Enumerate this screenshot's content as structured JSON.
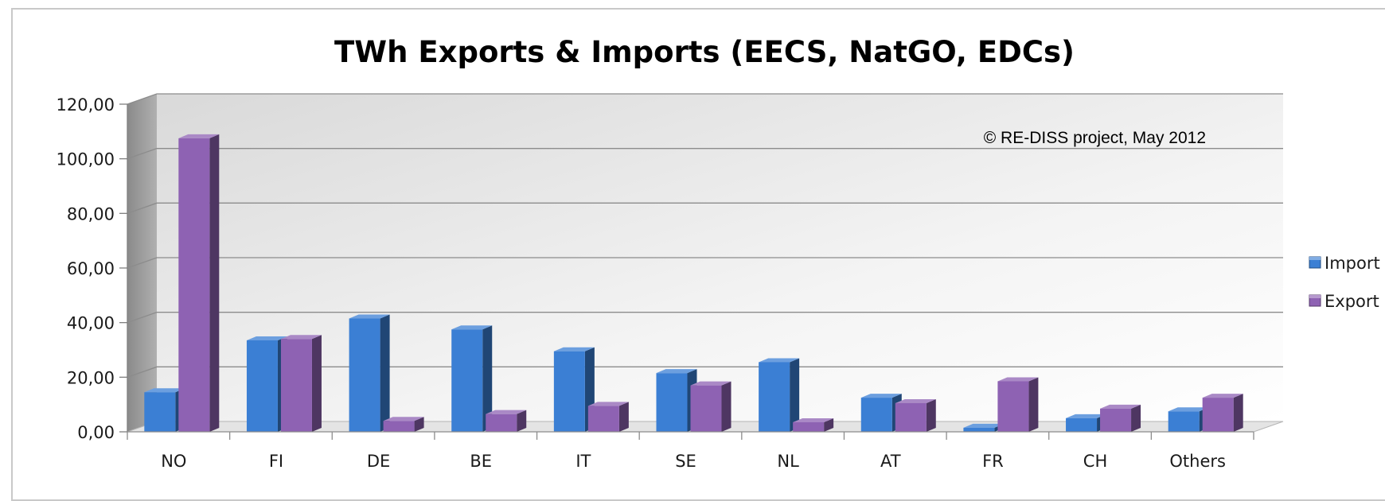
{
  "chart_data": {
    "type": "bar",
    "title": "TWh Exports & Imports (EECS, NatGO, EDCs)",
    "annotation": "© RE-DISS project, May 2012",
    "categories": [
      "NO",
      "FI",
      "DE",
      "BE",
      "IT",
      "SE",
      "NL",
      "AT",
      "FR",
      "CH",
      "Others"
    ],
    "series": [
      {
        "name": "Import",
        "color": "#3b7fd4",
        "values": [
          14.5,
          33.5,
          41.5,
          37.5,
          29.5,
          21.5,
          25.5,
          12.5,
          1.5,
          5.0,
          7.5
        ]
      },
      {
        "name": "Export",
        "color": "#8e62b3",
        "values": [
          107.5,
          34.0,
          4.0,
          6.5,
          9.5,
          17.0,
          3.5,
          10.5,
          18.5,
          8.5,
          12.5
        ]
      }
    ],
    "ylim": [
      0,
      120
    ],
    "yticks": [
      "0,00",
      "20,00",
      "40,00",
      "60,00",
      "80,00",
      "100,00",
      "120,00"
    ],
    "grid": true,
    "legend_position": "right"
  }
}
